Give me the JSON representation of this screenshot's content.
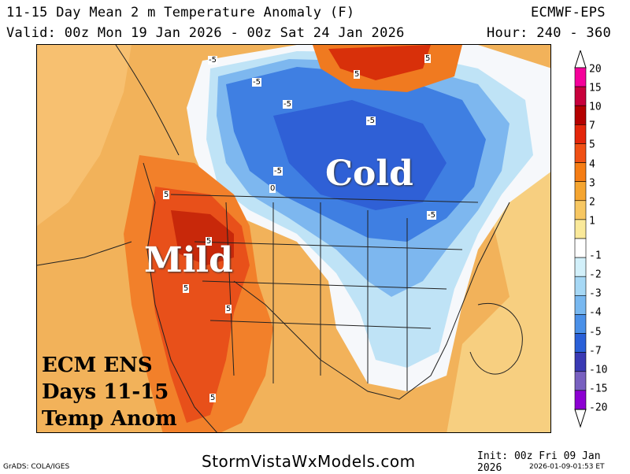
{
  "header": {
    "title": "11-15 Day Mean 2 m Temperature Anomaly (F)",
    "valid": "Valid: 00z Mon 19 Jan 2026 - 00z Sat 24 Jan 2026",
    "model": "ECMWF-EPS",
    "hour": "Hour: 240 - 360"
  },
  "map_labels": {
    "cold": "Cold",
    "mild": "Mild",
    "box_line1": "ECM ENS",
    "box_line2": "Days 11-15",
    "box_line3": "Temp Anom"
  },
  "contour_labels": [
    "-5",
    "-5",
    "-5",
    "-5",
    "-5",
    "-5",
    "5",
    "5",
    "5",
    "5",
    "5",
    "5",
    "5",
    "0"
  ],
  "colorbar": {
    "levels": [
      {
        "label": "20",
        "color": "#f5009a"
      },
      {
        "label": "15",
        "color": "#c8003c"
      },
      {
        "label": "10",
        "color": "#b40000"
      },
      {
        "label": "7",
        "color": "#e4260a"
      },
      {
        "label": "5",
        "color": "#f05014"
      },
      {
        "label": "4",
        "color": "#f57d14"
      },
      {
        "label": "3",
        "color": "#f5a530"
      },
      {
        "label": "2",
        "color": "#f7c762"
      },
      {
        "label": "1",
        "color": "#fae99a"
      },
      {
        "label": "-1",
        "color": "#ffffff"
      },
      {
        "label": "-2",
        "color": "#d2f0fa"
      },
      {
        "label": "-3",
        "color": "#a6d8f5"
      },
      {
        "label": "-4",
        "color": "#78b8f0"
      },
      {
        "label": "-5",
        "color": "#4a90e8"
      },
      {
        "label": "-7",
        "color": "#2a60d8"
      },
      {
        "label": "-10",
        "color": "#3a3ab4"
      },
      {
        "label": "-15",
        "color": "#7860c0"
      },
      {
        "label": "-20",
        "color": "#8c00d2"
      }
    ],
    "top_arrow_color": "#ffffff",
    "bottom_arrow_color": "#ffffff"
  },
  "footer": {
    "grads": "GrADS: COLA/IGES",
    "site": "StormVistaWxModels.com",
    "init": "Init: 00z Fri 09 Jan 2026",
    "stamp": "2026-01-09-01:53 ET"
  },
  "colors": {
    "warm": "#f2a650",
    "cold": "#2f6fe0",
    "very_warm": "#e03a10"
  }
}
